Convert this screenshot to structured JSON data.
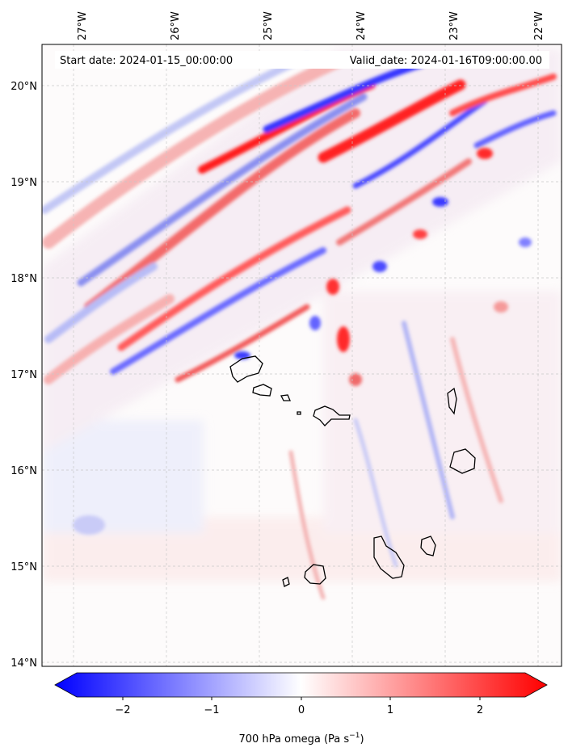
{
  "header": {
    "start_date": "Start date: 2024-01-15_00:00:00",
    "valid_date": "Valid_date: 2024-01-16T09:00:00.00"
  },
  "map": {
    "variable": "700 hPa omega",
    "lon_ticks": [
      "27°W",
      "26°W",
      "25°W",
      "24°W",
      "23°W",
      "22°W"
    ],
    "lat_ticks": [
      "20°N",
      "19°N",
      "18°N",
      "17°N",
      "16°N",
      "15°N",
      "14°N"
    ],
    "gridlines": "dashed",
    "features": [
      "Cape Verde island outlines"
    ]
  },
  "colorbar": {
    "colormap": "bwr",
    "min_color": "#0000ff",
    "mid_color": "#ffffff",
    "max_color": "#ff0000",
    "vmin": -2.5,
    "vmax": 2.5,
    "extend": "both",
    "tick_labels": [
      "−2",
      "−1",
      "0",
      "1",
      "2"
    ],
    "label_main": "700 hPa omega (Pa s",
    "label_exp": "−1",
    "label_close": ")"
  }
}
